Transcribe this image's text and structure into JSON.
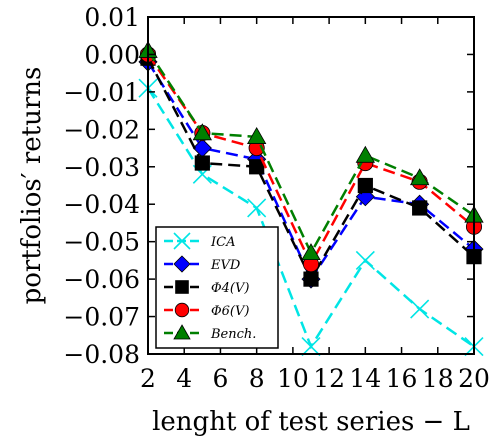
{
  "chart_data": {
    "type": "line",
    "xlabel": "lenght of test series  − L",
    "ylabel": "portfolios′ returns",
    "xlim": [
      2,
      20
    ],
    "ylim": [
      -0.08,
      0.01
    ],
    "xticks": [
      "2",
      "4",
      "6",
      "8",
      "10",
      "12",
      "14",
      "16",
      "18",
      "20"
    ],
    "yticks": [
      "0.01",
      "0.00",
      "−0.01",
      "−0.02",
      "−0.03",
      "−0.04",
      "−0.05",
      "−0.06",
      "−0.07",
      "−0.08"
    ],
    "legend_position": "lower-left",
    "grid": false,
    "series": [
      {
        "name": "ICA",
        "color": "#00e5e5",
        "marker": "x",
        "x": [
          2,
          5,
          8,
          11,
          14,
          17,
          20
        ],
        "y": [
          -0.009,
          -0.032,
          -0.041,
          -0.078,
          -0.055,
          -0.068,
          -0.078
        ]
      },
      {
        "name": "EVD",
        "color": "#0000ff",
        "marker": "diamond",
        "x": [
          2,
          5,
          8,
          11,
          14,
          17,
          20
        ],
        "y": [
          -0.002,
          -0.025,
          -0.028,
          -0.06,
          -0.038,
          -0.04,
          -0.052
        ]
      },
      {
        "name": "Φ4(V)",
        "color": "#000000",
        "marker": "square",
        "x": [
          2,
          5,
          8,
          11,
          14,
          17,
          20
        ],
        "y": [
          -0.001,
          -0.029,
          -0.03,
          -0.06,
          -0.035,
          -0.041,
          -0.054
        ]
      },
      {
        "name": "Φ6(V)",
        "color": "#ff0000",
        "marker": "circle",
        "x": [
          2,
          5,
          8,
          11,
          14,
          17,
          20
        ],
        "y": [
          0.0,
          -0.021,
          -0.025,
          -0.056,
          -0.029,
          -0.034,
          -0.046
        ]
      },
      {
        "name": "Bench.",
        "color": "#007f00",
        "marker": "triangle",
        "x": [
          2,
          5,
          8,
          11,
          14,
          17,
          20
        ],
        "y": [
          0.001,
          -0.021,
          -0.022,
          -0.053,
          -0.027,
          -0.033,
          -0.043
        ]
      }
    ]
  }
}
